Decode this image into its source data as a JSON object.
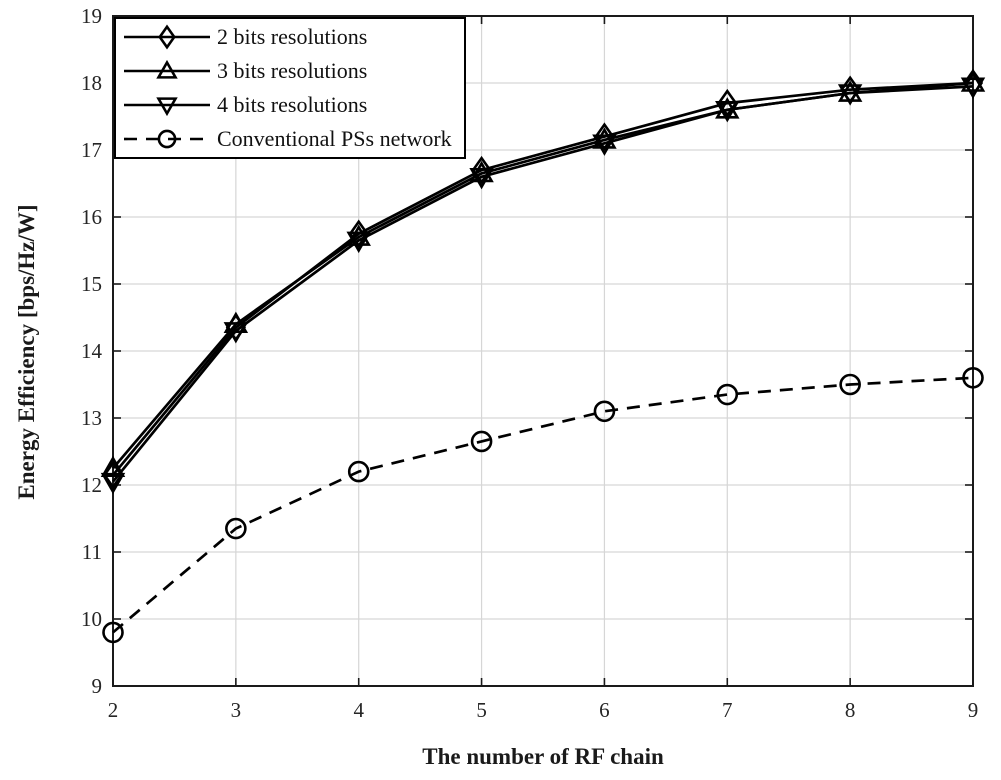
{
  "chart_data": {
    "type": "line",
    "title": "",
    "xlabel": "The number of RF chain",
    "ylabel": "Energy Efficiency [bps/Hz/W]",
    "x": [
      2,
      3,
      4,
      5,
      6,
      7,
      8,
      9
    ],
    "xlim": [
      2,
      9
    ],
    "ylim": [
      9,
      19
    ],
    "xticks": [
      2,
      3,
      4,
      5,
      6,
      7,
      8,
      9
    ],
    "yticks": [
      9,
      10,
      11,
      12,
      13,
      14,
      15,
      16,
      17,
      18,
      19
    ],
    "grid": true,
    "legend_position": "top-left",
    "series": [
      {
        "name": "2 bits resolutions",
        "marker": "diamond",
        "line": "solid",
        "values": [
          12.15,
          14.35,
          15.75,
          16.7,
          17.2,
          17.7,
          17.9,
          18.0
        ]
      },
      {
        "name": "3 bits resolutions",
        "marker": "triangle-up",
        "line": "solid",
        "values": [
          12.25,
          14.4,
          15.7,
          16.65,
          17.15,
          17.6,
          17.85,
          18.0
        ]
      },
      {
        "name": "4 bits resolutions",
        "marker": "triangle-down",
        "line": "solid",
        "values": [
          12.05,
          14.3,
          15.65,
          16.6,
          17.1,
          17.6,
          17.85,
          17.95
        ]
      },
      {
        "name": "Conventional PSs network",
        "marker": "circle",
        "line": "dashed",
        "values": [
          9.8,
          11.35,
          12.2,
          12.65,
          13.1,
          13.35,
          13.5,
          13.6
        ]
      }
    ],
    "colors": {
      "line": "#000000",
      "text": "#262626",
      "grid": "#d6d6d6",
      "axis": "#1a1a1a",
      "background": "#ffffff"
    }
  }
}
